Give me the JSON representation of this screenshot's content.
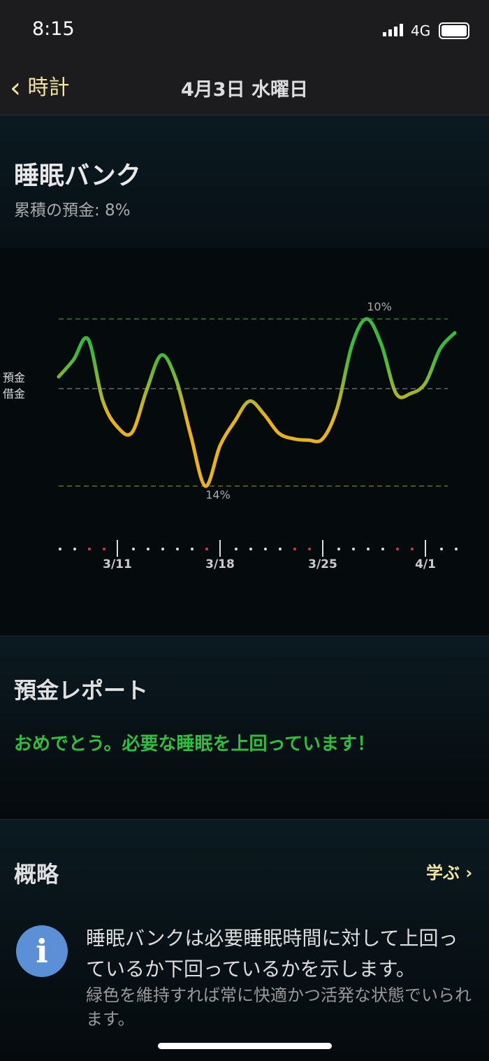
{
  "status_bar": {
    "time": "8:15",
    "network": "4G"
  },
  "nav": {
    "back": "時計",
    "title": "4月3日 水曜日"
  },
  "sleep_bank": {
    "title": "睡眠バンク",
    "subtitle": "累積の預金: 8%"
  },
  "chart_data": {
    "type": "line",
    "y_labels": [
      "預金",
      "借金"
    ],
    "categories": [
      null,
      null,
      null,
      null,
      "3/11",
      null,
      null,
      null,
      null,
      null,
      null,
      "3/18",
      null,
      null,
      null,
      null,
      null,
      null,
      "3/25",
      null,
      null,
      null,
      null,
      null,
      null,
      "4/1",
      null,
      null
    ],
    "values": [
      1.7,
      4.1,
      7.1,
      -1.7,
      -5.5,
      -6.3,
      -0.2,
      4.8,
      1.3,
      -6.7,
      -14,
      -8.2,
      -4.7,
      -1.8,
      -3.7,
      -6.4,
      -7.2,
      -7.4,
      -7.2,
      -2.7,
      6.3,
      10,
      6.3,
      -0.7,
      -0.7,
      0.8,
      5.7,
      8
    ],
    "annotations": [
      "10%",
      "14%"
    ],
    "ylim": [
      -14,
      10
    ],
    "yticks": [
      -14,
      0,
      10
    ],
    "reference_line_colors": [
      "#6e6a2c",
      "#6a6a6a",
      "#2e7d32"
    ],
    "line_colors": [
      "#3cb83c",
      "#e8b21e"
    ]
  },
  "report": {
    "title": "預金レポート",
    "message": "おめでとう。必要な睡眠を上回っています！"
  },
  "summary": {
    "title": "概略",
    "link": "学ぶ ›",
    "text": "睡眠バンクは必要睡眠時間に対して上回っているか下回っているかを示します。",
    "note": "緑色を維持すれば常に快適かつ活発な状態でいられます。"
  }
}
